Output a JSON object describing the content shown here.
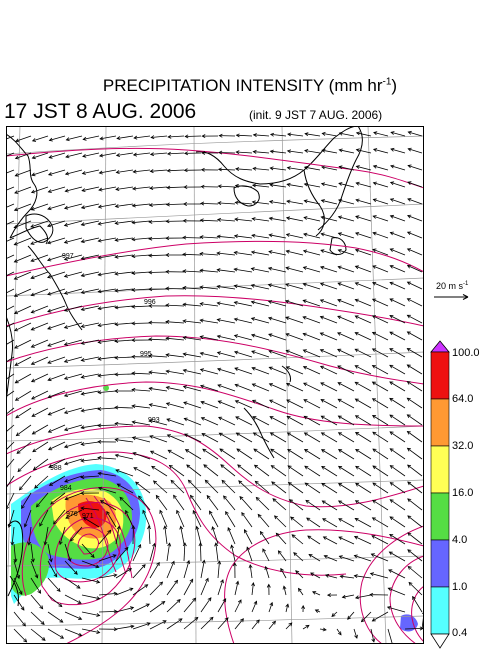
{
  "title": {
    "main": "PRECIPITATION INTENSITY (mm hr",
    "exp": "-1",
    "close": ")"
  },
  "valid_time": "17 JST 8 AUG. 2006",
  "init_time": "(init. 9 JST 7 AUG. 2006)",
  "reference_vector": {
    "label": "20 m s",
    "exp": "-1"
  },
  "pressure_labels": [
    "997",
    "996",
    "995",
    "993",
    "988",
    "984",
    "976",
    "971"
  ],
  "colorbar": {
    "labels": [
      "100.0",
      "64.0",
      "32.0",
      "16.0",
      "4.0",
      "1.0",
      "0.4"
    ],
    "colors": {
      "over": "#cc33ff",
      "c64_100": "#ee1111",
      "c32_64": "#ff9933",
      "c16_32": "#ffff55",
      "c4_16": "#55dd44",
      "c1_4": "#6666ff",
      "c04_1": "#55ffff",
      "under": "#ffffff"
    }
  },
  "colors": {
    "isobar": "#cc0066",
    "grid": "#999999",
    "coast": "#000000",
    "wind": "#000000"
  }
}
